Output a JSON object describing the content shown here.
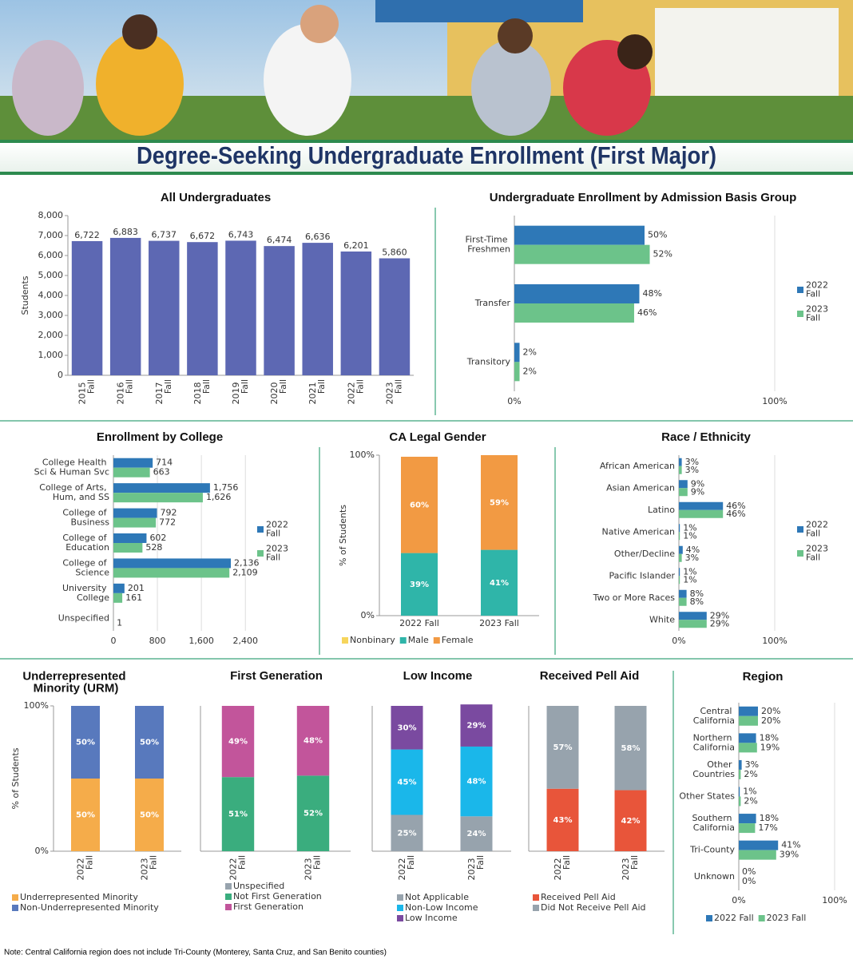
{
  "header": {
    "title": "Degree-Seeking Undergraduate Enrollment (First Major)"
  },
  "note": "Note: Central California region does not include Tri-County (Monterey, Santa Cruz, and San Benito counties)",
  "chart_data": [
    {
      "type": "bar",
      "title": "All Undergraduates",
      "y_label": "Students",
      "color": "#5d68b3",
      "categories": [
        "2015 Fall",
        "2016 Fall",
        "2017 Fall",
        "2018 Fall",
        "2019 Fall",
        "2020 Fall",
        "2021 Fall",
        "2022 Fall",
        "2023 Fall"
      ],
      "values": [
        6722,
        6883,
        6737,
        6672,
        6743,
        6474,
        6636,
        6201,
        5860
      ],
      "value_labels": [
        "6,722",
        "6,883",
        "6,737",
        "6,672",
        "6,743",
        "6,474",
        "6,636",
        "6,201",
        "5,860"
      ],
      "ylim": [
        0,
        8000
      ],
      "yticks": [
        0,
        {
          "value": 1000,
          "label": "1,000"
        },
        {
          "value": 2000,
          "label": "2,000"
        },
        {
          "value": 3000,
          "label": "3,000"
        },
        {
          "value": 4000,
          "label": "4,000"
        },
        {
          "value": 5000,
          "label": "5,000"
        },
        {
          "value": 6000,
          "label": "6,000"
        },
        {
          "value": 7000,
          "label": "7,000"
        },
        {
          "value": 8000,
          "label": "8,000"
        }
      ],
      "grid": false
    },
    {
      "type": "hbar",
      "title": "Undergraduate Enrollment by Admission Basis Group",
      "legend": "right",
      "grid": true,
      "categories": [
        "First-Time Freshmen",
        "Transfer",
        "Transitory"
      ],
      "series": [
        {
          "name": "2022 Fall",
          "color": "#2e78b7",
          "values": [
            50,
            48,
            2
          ],
          "value_labels": [
            "50%",
            "48%",
            "2%"
          ]
        },
        {
          "name": "2023 Fall",
          "color": "#6cc38a",
          "values": [
            52,
            46,
            2
          ],
          "value_labels": [
            "52%",
            "46%",
            "2%"
          ]
        }
      ],
      "xlim": [
        0,
        100
      ],
      "xticks": [
        {
          "value": 0,
          "label": "0%"
        },
        {
          "value": 100,
          "label": "100%"
        }
      ]
    },
    {
      "type": "hbar",
      "title": "Enrollment by College",
      "legend": "right",
      "grid": true,
      "categories": [
        "College Health Sci & Human Svc",
        "College of Arts, Hum, and SS",
        "College of Business",
        "College of Education",
        "College of Science",
        "University College",
        "Unspecified"
      ],
      "series": [
        {
          "name": "2022 Fall",
          "color": "#2e78b7",
          "values": [
            714,
            1756,
            792,
            602,
            2136,
            201,
            null
          ],
          "value_labels": [
            "714",
            "1,756",
            "792",
            "602",
            "2,136",
            "201",
            null
          ]
        },
        {
          "name": "2023 Fall",
          "color": "#6cc38a",
          "values": [
            663,
            1626,
            772,
            528,
            2109,
            161,
            1
          ],
          "value_labels": [
            "663",
            "1,626",
            "772",
            "528",
            "2,109",
            "161",
            "1"
          ]
        }
      ],
      "xlim": [
        0,
        2600
      ],
      "xticks": [
        0,
        800,
        {
          "value": 1600,
          "label": "1,600"
        },
        {
          "value": 2400,
          "label": "2,400"
        }
      ]
    },
    {
      "type": "stacked",
      "title": "CA Legal Gender",
      "y_label": "% of Students",
      "legend": "bottom",
      "categories": [
        "2022 Fall",
        "2023 Fall"
      ],
      "series": [
        {
          "name": "Nonbinary",
          "color": "#f6d55c",
          "values": [
            0,
            0
          ]
        },
        {
          "name": "Male",
          "color": "#2fb5a9",
          "values": [
            39,
            41
          ],
          "value_labels": [
            "39%",
            "41%"
          ]
        },
        {
          "name": "Female",
          "color": "#f29a43",
          "values": [
            60,
            59
          ],
          "value_labels": [
            "60%",
            "59%"
          ]
        }
      ],
      "ylim": [
        0,
        100
      ],
      "yticks": [
        {
          "value": 0,
          "label": "0%"
        },
        {
          "value": 100,
          "label": "100%"
        }
      ]
    },
    {
      "type": "hbar",
      "title": "Race / Ethnicity",
      "legend": "right",
      "grid": true,
      "categories": [
        "African American",
        "Asian American",
        "Latino",
        "Native American",
        "Other/Decline",
        "Pacific Islander",
        "Two or More Races",
        "White"
      ],
      "series": [
        {
          "name": "2022 Fall",
          "color": "#2e78b7",
          "values": [
            3,
            9,
            46,
            1,
            4,
            1,
            8,
            29
          ],
          "value_labels": [
            "3%",
            "9%",
            "46%",
            "1%",
            "4%",
            "1%",
            "8%",
            "29%"
          ]
        },
        {
          "name": "2023 Fall",
          "color": "#6cc38a",
          "values": [
            3,
            9,
            46,
            1,
            3,
            1,
            8,
            29
          ],
          "value_labels": [
            "3%",
            "9%",
            "46%",
            "1%",
            "3%",
            "1%",
            "8%",
            "29%"
          ]
        }
      ],
      "xlim": [
        0,
        100
      ],
      "xticks": [
        {
          "value": 0,
          "label": "0%"
        },
        {
          "value": 100,
          "label": "100%"
        }
      ]
    },
    {
      "type": "stacked",
      "title": "Underrepresented Minority (URM)",
      "y_label": "% of Students",
      "legend": "bottom",
      "categories": [
        "2022 Fall",
        "2023 Fall"
      ],
      "series": [
        {
          "name": "Underrepresented Minority",
          "color": "#f5ac4a",
          "values": [
            50,
            50
          ],
          "value_labels": [
            "50%",
            "50%"
          ]
        },
        {
          "name": "Non-Underrepresented Minority",
          "color": "#5879bd",
          "values": [
            50,
            50
          ],
          "value_labels": [
            "50%",
            "50%"
          ]
        }
      ],
      "ylim": [
        0,
        100
      ],
      "yticks": [
        {
          "value": 0,
          "label": "0%"
        },
        {
          "value": 100,
          "label": "100%"
        }
      ]
    },
    {
      "type": "stacked",
      "title": "First Generation",
      "legend": "bottom",
      "categories": [
        "2022 Fall",
        "2023 Fall"
      ],
      "series": [
        {
          "name": "Unspecified",
          "color": "#97a3ad",
          "values": [
            0,
            0
          ]
        },
        {
          "name": "Not First Generation",
          "color": "#3aad7e",
          "values": [
            51,
            52
          ],
          "value_labels": [
            "51%",
            "52%"
          ]
        },
        {
          "name": "First Generation",
          "color": "#c2559b",
          "values": [
            49,
            48
          ],
          "value_labels": [
            "49%",
            "48%"
          ]
        }
      ],
      "ylim": [
        0,
        100
      ]
    },
    {
      "type": "stacked",
      "title": "Low Income",
      "legend": "bottom",
      "categories": [
        "2022 Fall",
        "2023 Fall"
      ],
      "series": [
        {
          "name": "Not Applicable",
          "color": "#97a3ad",
          "values": [
            25,
            24
          ],
          "value_labels": [
            "25%",
            "24%"
          ]
        },
        {
          "name": "Non-Low Income",
          "color": "#1ab7ea",
          "values": [
            45,
            48
          ],
          "value_labels": [
            "45%",
            "48%"
          ]
        },
        {
          "name": "Low Income",
          "color": "#7a4aa0",
          "values": [
            30,
            29
          ],
          "value_labels": [
            "30%",
            "29%"
          ]
        }
      ],
      "ylim": [
        0,
        100
      ]
    },
    {
      "type": "stacked",
      "title": "Received Pell Aid",
      "legend": "bottom",
      "categories": [
        "2022 Fall",
        "2023 Fall"
      ],
      "series": [
        {
          "name": "Received Pell Aid",
          "color": "#e8553a",
          "values": [
            43,
            42
          ],
          "value_labels": [
            "43%",
            "42%"
          ]
        },
        {
          "name": "Did Not Receive Pell Aid",
          "color": "#97a3ad",
          "values": [
            57,
            58
          ],
          "value_labels": [
            "57%",
            "58%"
          ]
        }
      ],
      "ylim": [
        0,
        100
      ]
    },
    {
      "type": "hbar",
      "title": "Region",
      "legend": "bottom",
      "grid": true,
      "categories": [
        "Central California",
        "Northern California",
        "Other Countries",
        "Other States",
        "Southern California",
        "Tri-County",
        "Unknown"
      ],
      "series": [
        {
          "name": "2022 Fall",
          "color": "#2e78b7",
          "values": [
            20,
            18,
            3,
            1,
            18,
            41,
            0
          ],
          "value_labels": [
            "20%",
            "18%",
            "3%",
            "1%",
            "18%",
            "41%",
            "0%"
          ]
        },
        {
          "name": "2023 Fall",
          "color": "#6cc38a",
          "values": [
            20,
            19,
            2,
            2,
            17,
            39,
            0
          ],
          "value_labels": [
            "20%",
            "19%",
            "2%",
            "2%",
            "17%",
            "39%",
            "0%"
          ]
        }
      ],
      "xlim": [
        0,
        100
      ],
      "xticks": [
        {
          "value": 0,
          "label": "0%"
        },
        {
          "value": 100,
          "label": "100%"
        }
      ]
    }
  ]
}
